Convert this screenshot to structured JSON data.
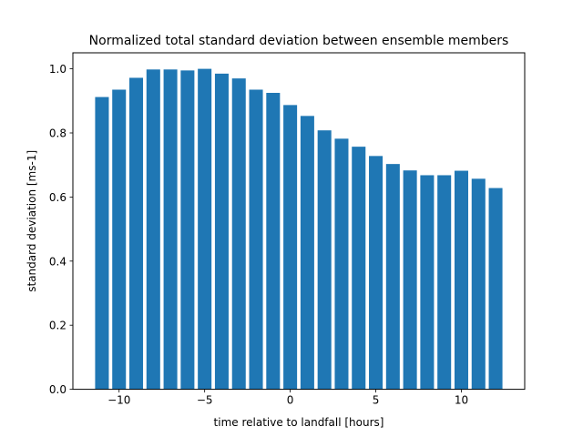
{
  "chart_data": {
    "type": "bar",
    "title": "Normalized total standard deviation between ensemble members",
    "xlabel": "time relative to landfall [hours]",
    "ylabel": "standard deviation [ms-1]",
    "x": [
      -11,
      -10,
      -9,
      -8,
      -7,
      -6,
      -5,
      -4,
      -3,
      -2,
      -1,
      0,
      1,
      2,
      3,
      4,
      5,
      6,
      7,
      8,
      9,
      10,
      11,
      12
    ],
    "values": [
      0.912,
      0.935,
      0.972,
      0.998,
      0.998,
      0.995,
      1.0,
      0.985,
      0.97,
      0.935,
      0.925,
      0.887,
      0.853,
      0.808,
      0.782,
      0.757,
      0.728,
      0.703,
      0.683,
      0.668,
      0.668,
      0.682,
      0.657,
      0.628
    ],
    "xlim": [
      -12.7,
      13.7
    ],
    "ylim": [
      0,
      1.05
    ],
    "xticks": [
      -10,
      -5,
      0,
      5,
      10
    ],
    "xtick_labels": [
      "−10",
      "−5",
      "0",
      "5",
      "10"
    ],
    "yticks": [
      0.0,
      0.2,
      0.4,
      0.6,
      0.8,
      1.0
    ],
    "ytick_labels": [
      "0.0",
      "0.2",
      "0.4",
      "0.6",
      "0.8",
      "1.0"
    ],
    "bar_width": 0.8,
    "bar_color": "#1f77b4",
    "grid": false,
    "legend": "none"
  }
}
